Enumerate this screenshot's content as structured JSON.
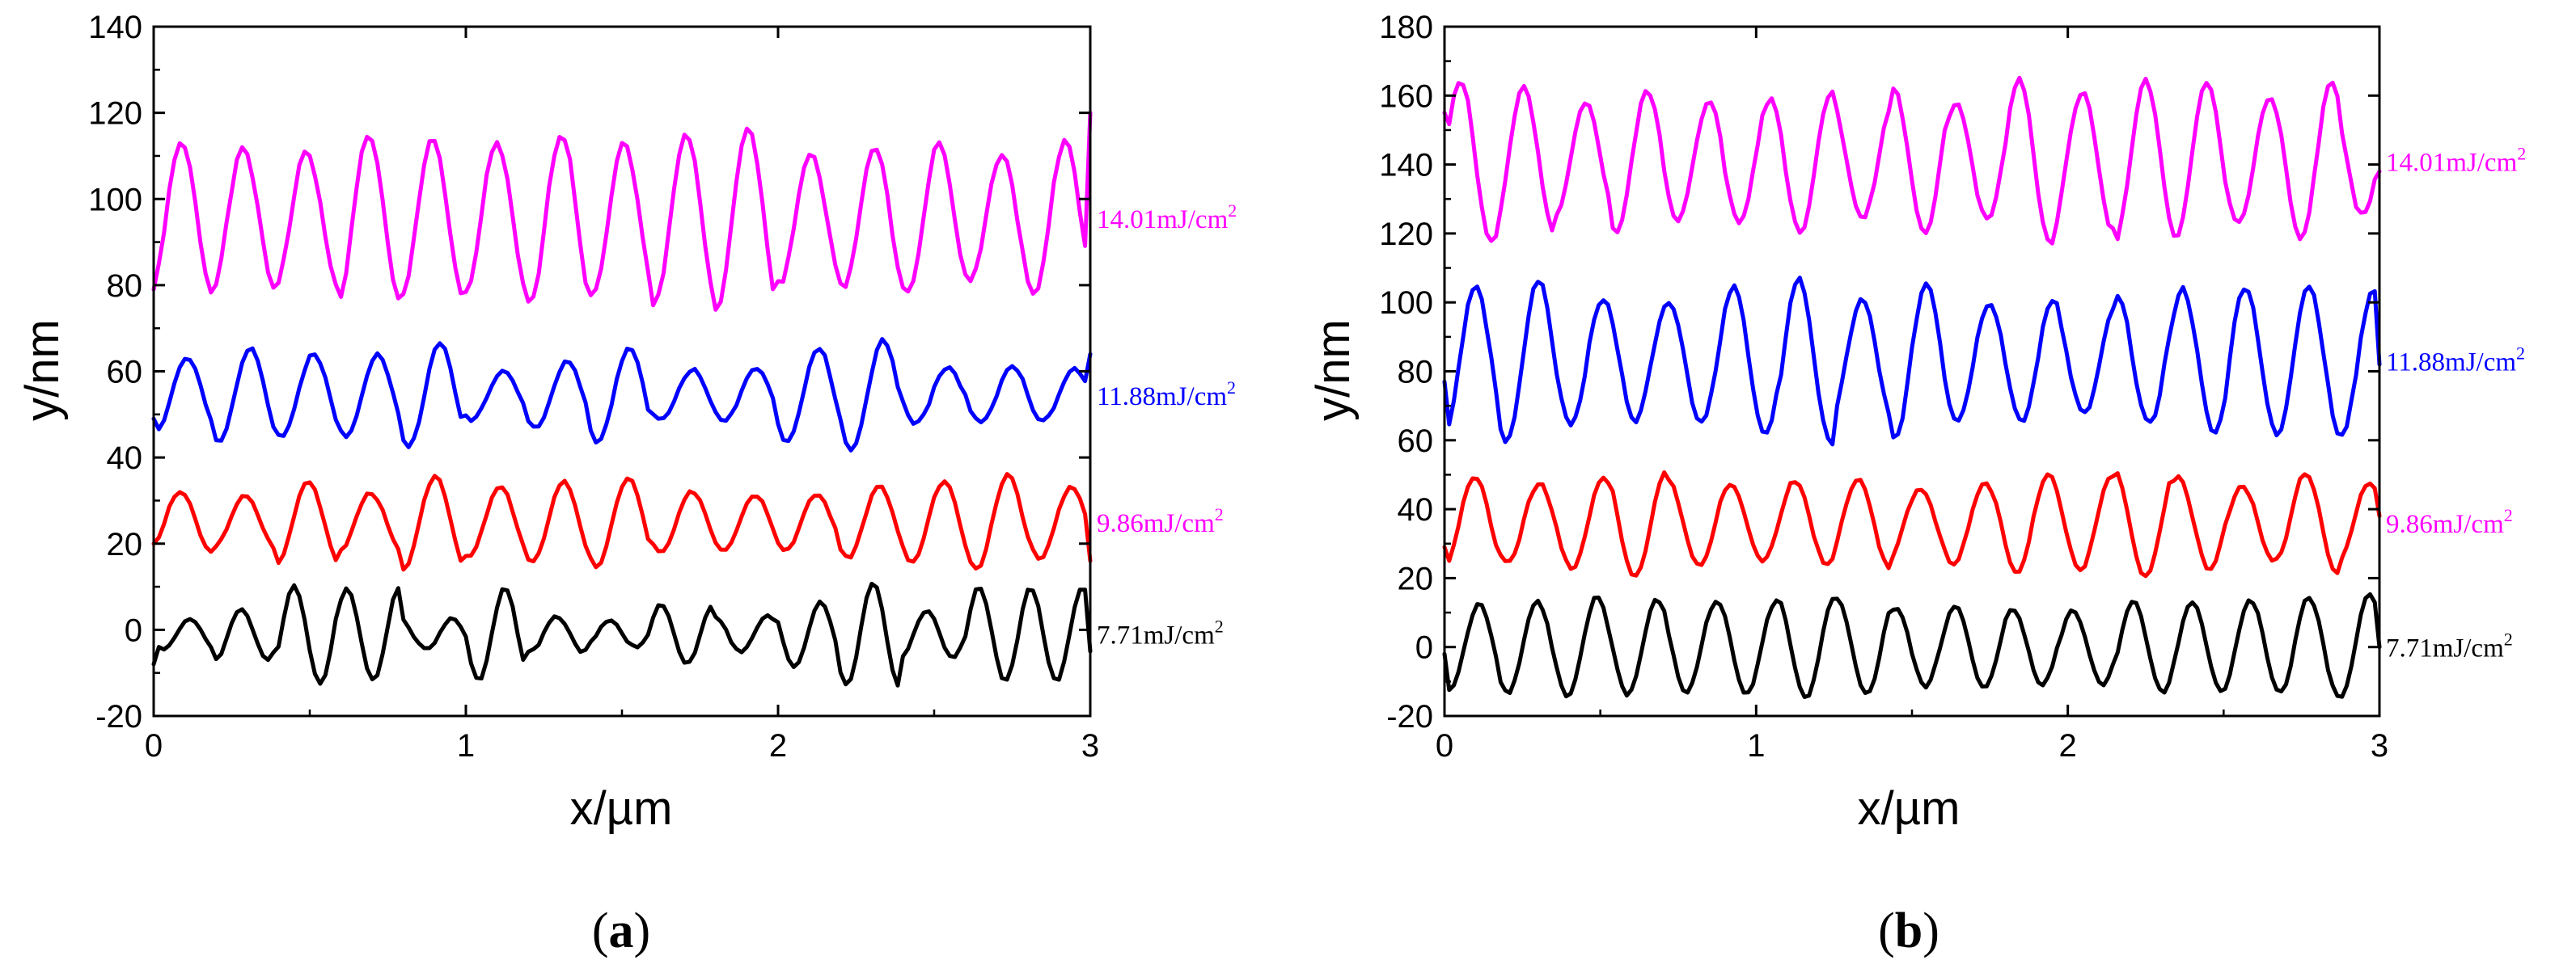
{
  "chart_data": [
    {
      "type": "line",
      "panel": "a",
      "caption_letter": "a",
      "xlabel": "x/µm",
      "ylabel": "y/nm",
      "xlim": [
        0,
        3
      ],
      "ylim": [
        -20,
        140
      ],
      "xticks": [
        0,
        1,
        2,
        3
      ],
      "yticks": [
        -20,
        0,
        20,
        40,
        60,
        80,
        100,
        120,
        140
      ],
      "series": [
        {
          "name": "14.01mJ/cm",
          "unit_sup": "2",
          "color": "#ff00ff",
          "label_color": "#ff00ff",
          "center": 95.5,
          "amplitude": 17,
          "period": 0.203,
          "phase": 0.04,
          "noise": 0.12,
          "seed": 1,
          "start_value": 79,
          "end_value": 120,
          "points": 180
        },
        {
          "name": "11.88mJ/cm",
          "unit_sup": "2",
          "color": "#0000ff",
          "label_color": "#0000ff",
          "center": 54.5,
          "amplitude": 9.5,
          "period": 0.203,
          "phase": 0.06,
          "noise": 0.2,
          "seed": 2,
          "start_value": 49,
          "end_value": 64,
          "points": 180
        },
        {
          "name": "9.86mJ/cm",
          "unit_sup": "2",
          "color": "#ff0000",
          "label_color": "#ff00ff",
          "center": 25,
          "amplitude": 8.5,
          "period": 0.203,
          "phase": 0.03,
          "noise": 0.15,
          "seed": 3,
          "start_value": 20,
          "end_value": 16,
          "points": 180
        },
        {
          "name": "7.71mJ/cm",
          "unit_sup": "2",
          "color": "#000000",
          "label_color": "#000000",
          "center": -1,
          "amplitude": 7.5,
          "period": 0.168,
          "phase": 0.07,
          "noise": 0.3,
          "seed": 4,
          "start_value": -8,
          "end_value": -5,
          "points": 180
        }
      ],
      "labels": {
        "y_tick_texts": [
          "-20",
          "0",
          "20",
          "40",
          "60",
          "80",
          "100",
          "120",
          "140"
        ],
        "x_tick_texts": [
          "0",
          "1",
          "2",
          "3"
        ]
      }
    },
    {
      "type": "line",
      "panel": "b",
      "caption_letter": "b",
      "xlabel": "x/µm",
      "ylabel": "y/nm",
      "xlim": [
        0,
        3
      ],
      "ylim": [
        -20,
        180
      ],
      "xticks": [
        0,
        1,
        2,
        3
      ],
      "yticks": [
        -20,
        0,
        20,
        40,
        60,
        80,
        100,
        120,
        140,
        160,
        180
      ],
      "series": [
        {
          "name": "14.01mJ/cm",
          "unit_sup": "2",
          "color": "#ff00ff",
          "label_color": "#ff00ff",
          "center": 141,
          "amplitude": 20,
          "period": 0.2,
          "phase": 0.0,
          "noise": 0.12,
          "seed": 5,
          "start_value": 155,
          "end_value": 138,
          "points": 200
        },
        {
          "name": "11.88mJ/cm",
          "unit_sup": "2",
          "color": "#0000ff",
          "label_color": "#0000ff",
          "center": 83,
          "amplitude": 19.5,
          "period": 0.205,
          "phase": 0.05,
          "noise": 0.12,
          "seed": 6,
          "start_value": 77,
          "end_value": 82,
          "points": 200
        },
        {
          "name": "9.86mJ/cm",
          "unit_sup": "2",
          "color": "#ff0000",
          "label_color": "#ff00ff",
          "center": 36,
          "amplitude": 13,
          "period": 0.205,
          "phase": 0.05,
          "noise": 0.12,
          "seed": 7,
          "start_value": 29,
          "end_value": 38,
          "points": 200
        },
        {
          "name": "7.71mJ/cm",
          "unit_sup": "2",
          "color": "#000000",
          "label_color": "#000000",
          "center": 0,
          "amplitude": 13,
          "period": 0.19,
          "phase": 0.06,
          "noise": 0.12,
          "seed": 8,
          "start_value": -2,
          "end_value": 0,
          "points": 200
        }
      ],
      "labels": {
        "y_tick_texts": [
          "-20",
          "0",
          "20",
          "40",
          "60",
          "80",
          "100",
          "120",
          "140",
          "160",
          "180"
        ],
        "x_tick_texts": [
          "0",
          "1",
          "2",
          "3"
        ]
      }
    }
  ]
}
